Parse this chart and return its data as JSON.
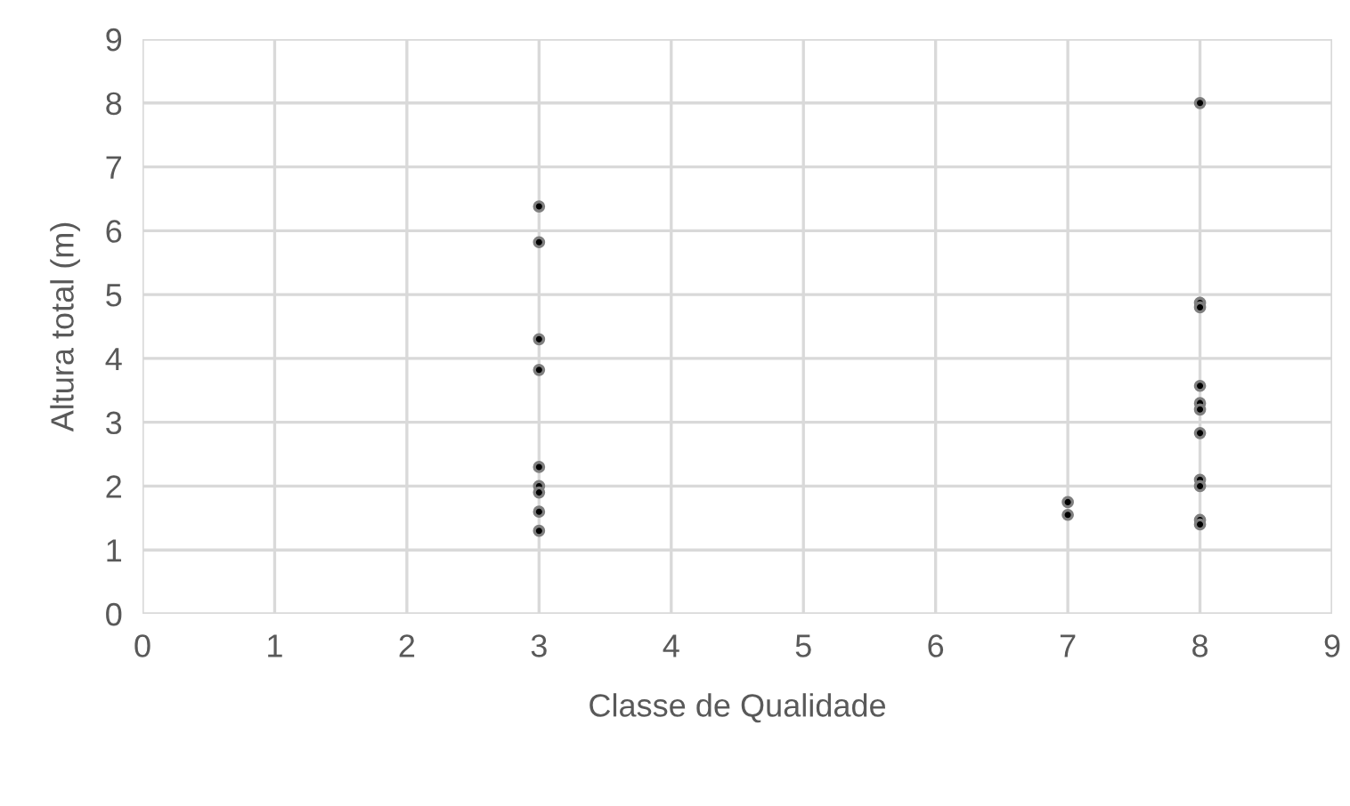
{
  "chart_data": {
    "type": "scatter",
    "xlabel": "Classe de Qualidade",
    "ylabel": "Altura total (m)",
    "x": [
      3,
      3,
      3,
      3,
      3,
      3,
      3,
      3,
      3,
      7,
      7,
      8,
      8,
      8,
      8,
      8,
      8,
      8,
      8,
      8,
      8,
      8
    ],
    "values": [
      6.38,
      5.82,
      4.3,
      3.82,
      2.3,
      2.0,
      1.9,
      1.6,
      1.3,
      1.75,
      1.55,
      8.0,
      4.87,
      4.8,
      3.57,
      3.3,
      3.2,
      2.83,
      2.1,
      2.0,
      1.47,
      1.4
    ],
    "color": "#000000",
    "marker": "circle",
    "xlim": [
      0,
      9
    ],
    "xticks": [
      0,
      1,
      2,
      3,
      4,
      5,
      6,
      7,
      8,
      9
    ],
    "ylim": [
      0,
      9
    ],
    "yticks": [
      0,
      1,
      2,
      3,
      4,
      5,
      6,
      7,
      8,
      9
    ],
    "grid": true
  }
}
